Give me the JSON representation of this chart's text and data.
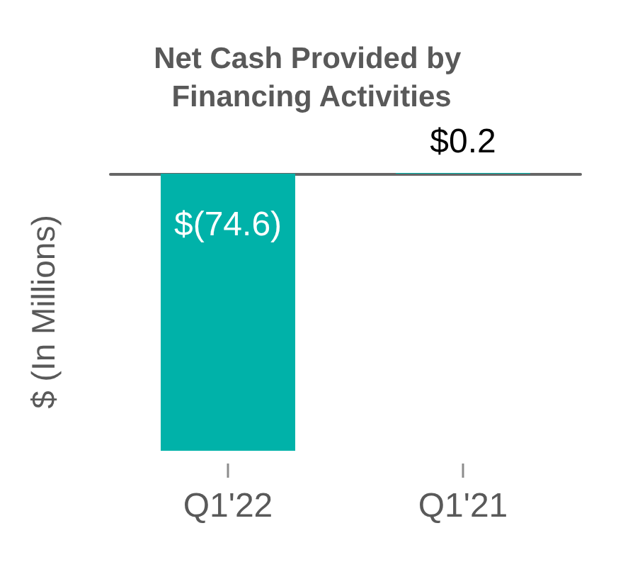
{
  "chart_data": {
    "type": "bar",
    "title": "Net Cash Provided by Financing Activities",
    "ylabel": "$ (In Millions)",
    "categories": [
      "Q1'22",
      "Q1'21"
    ],
    "values": [
      -74.6,
      0.2
    ],
    "value_labels": [
      "$(74.6)",
      "$0.2"
    ],
    "color": "#00b2a9",
    "tick_labels": "x",
    "grid": false
  }
}
